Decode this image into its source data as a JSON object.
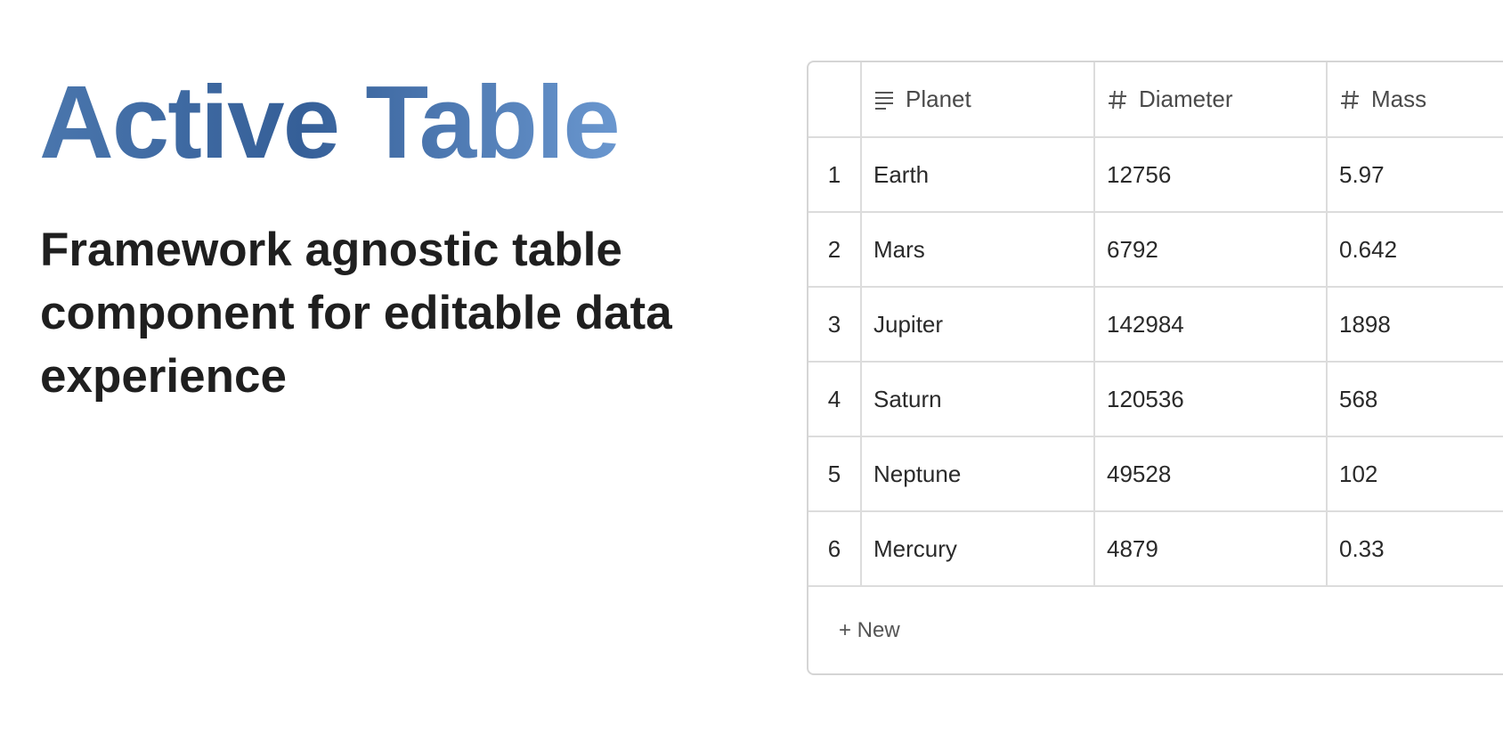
{
  "hero": {
    "title": "Active Table",
    "subtitle": "Framework agnostic table component for editable data experience",
    "title_gradient": [
      "#4a76ad",
      "#355f98",
      "#6a97cf"
    ]
  },
  "table": {
    "columns": [
      {
        "label": "Planet",
        "icon": "text-lines-icon"
      },
      {
        "label": "Diameter",
        "icon": "hash-icon"
      },
      {
        "label": "Mass",
        "icon": "hash-icon"
      }
    ],
    "rows": [
      {
        "index": "1",
        "cells": [
          "Earth",
          "12756",
          "5.97"
        ]
      },
      {
        "index": "2",
        "cells": [
          "Mars",
          "6792",
          "0.642"
        ]
      },
      {
        "index": "3",
        "cells": [
          "Jupiter",
          "142984",
          "1898"
        ]
      },
      {
        "index": "4",
        "cells": [
          "Saturn",
          "120536",
          "568"
        ]
      },
      {
        "index": "5",
        "cells": [
          "Neptune",
          "49528",
          "102"
        ]
      },
      {
        "index": "6",
        "cells": [
          "Mercury",
          "4879",
          "0.33"
        ]
      }
    ],
    "new_row_label": "+ New",
    "border_color": "#dcdcdc"
  }
}
